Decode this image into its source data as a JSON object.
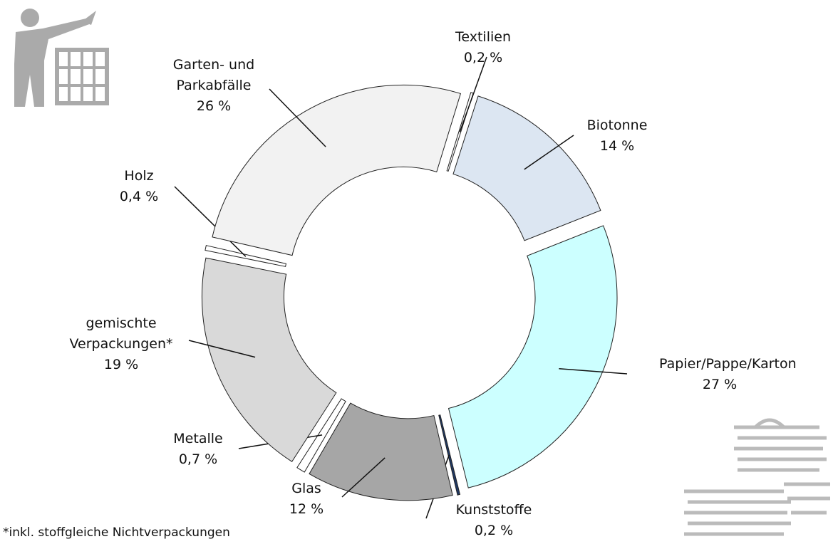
{
  "chart_data": {
    "type": "donut",
    "categories": [
      "Textilien",
      "Biotonne",
      "Papier/Pappe/Karton",
      "Kunststoffe",
      "Glas",
      "Metalle",
      "gemischte Verpackungen*",
      "Holz",
      "Garten- und Parkabfälle"
    ],
    "values": [
      0.2,
      14,
      27,
      0.2,
      12,
      0.7,
      19,
      0.4,
      26
    ],
    "value_labels": [
      "0,2 %",
      "14 %",
      "27 %",
      "0,2 %",
      "12 %",
      "0,7 %",
      "19 %",
      "0,4 %",
      "26 %"
    ],
    "colors": [
      "#ffffff",
      "#dce6f2",
      "#ccffff",
      "#1f3864",
      "#a6a6a6",
      "#ffffff",
      "#d9d9d9",
      "#ffffff",
      "#f2f2f2"
    ],
    "footnote": "*inkl. stoffgleiche Nichtverpackungen"
  }
}
